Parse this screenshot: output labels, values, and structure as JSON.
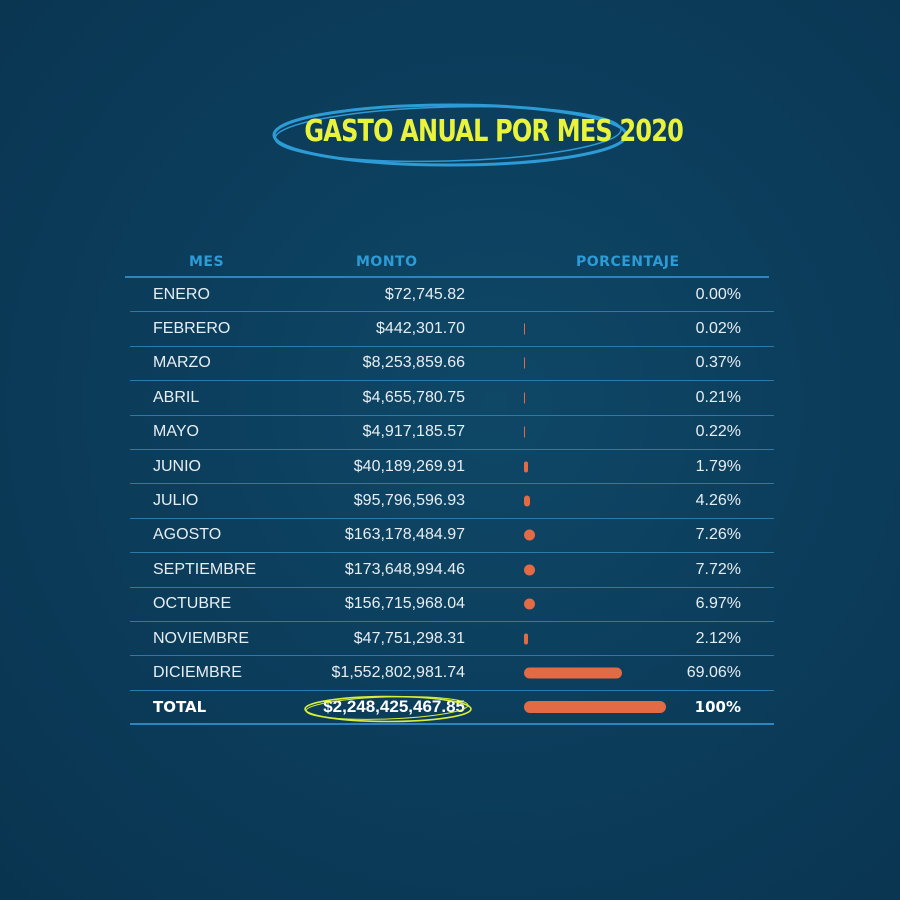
{
  "title": "GASTO ANUAL POR MES 2020",
  "colors": {
    "background": "#0b3c5a",
    "title": "#e9f33a",
    "header": "#2d9bd6",
    "bar": "#e26a45",
    "line": "#2a7aaa",
    "highlight_ring": "#d8ef3a"
  },
  "headers": {
    "mes": "MES",
    "monto": "MONTO",
    "porcentaje": "PORCENTAJE"
  },
  "chart_data": {
    "type": "table",
    "title": "GASTO ANUAL POR MES 2020",
    "columns": [
      "MES",
      "MONTO",
      "PORCENTAJE"
    ],
    "rows": [
      {
        "mes": "ENERO",
        "monto": "$72,745.82",
        "porcentaje": "0.00%",
        "value": 0.0
      },
      {
        "mes": "FEBRERO",
        "monto": "$442,301.70",
        "porcentaje": "0.02%",
        "value": 0.02
      },
      {
        "mes": "MARZO",
        "monto": "$8,253,859.66",
        "porcentaje": "0.37%",
        "value": 0.37
      },
      {
        "mes": "ABRIL",
        "monto": "$4,655,780.75",
        "porcentaje": "0.21%",
        "value": 0.21
      },
      {
        "mes": "MAYO",
        "monto": "$4,917,185.57",
        "porcentaje": "0.22%",
        "value": 0.22
      },
      {
        "mes": "JUNIO",
        "monto": "$40,189,269.91",
        "porcentaje": "1.79%",
        "value": 1.79
      },
      {
        "mes": "JULIO",
        "monto": "$95,796,596.93",
        "porcentaje": "4.26%",
        "value": 4.26
      },
      {
        "mes": "AGOSTO",
        "monto": "$163,178,484.97",
        "porcentaje": "7.26%",
        "value": 7.26
      },
      {
        "mes": "SEPTIEMBRE",
        "monto": "$173,648,994.46",
        "porcentaje": "7.72%",
        "value": 7.72
      },
      {
        "mes": "OCTUBRE",
        "monto": "$156,715,968.04",
        "porcentaje": "6.97%",
        "value": 6.97
      },
      {
        "mes": "NOVIEMBRE",
        "monto": "$47,751,298.31",
        "porcentaje": "2.12%",
        "value": 2.12
      },
      {
        "mes": "DICIEMBRE",
        "monto": "$1,552,802,981.74",
        "porcentaje": "69.06%",
        "value": 69.06
      }
    ],
    "total": {
      "mes": "TOTAL",
      "monto": "$2,248,425,467.85",
      "porcentaje": "100%",
      "value": 100
    }
  }
}
